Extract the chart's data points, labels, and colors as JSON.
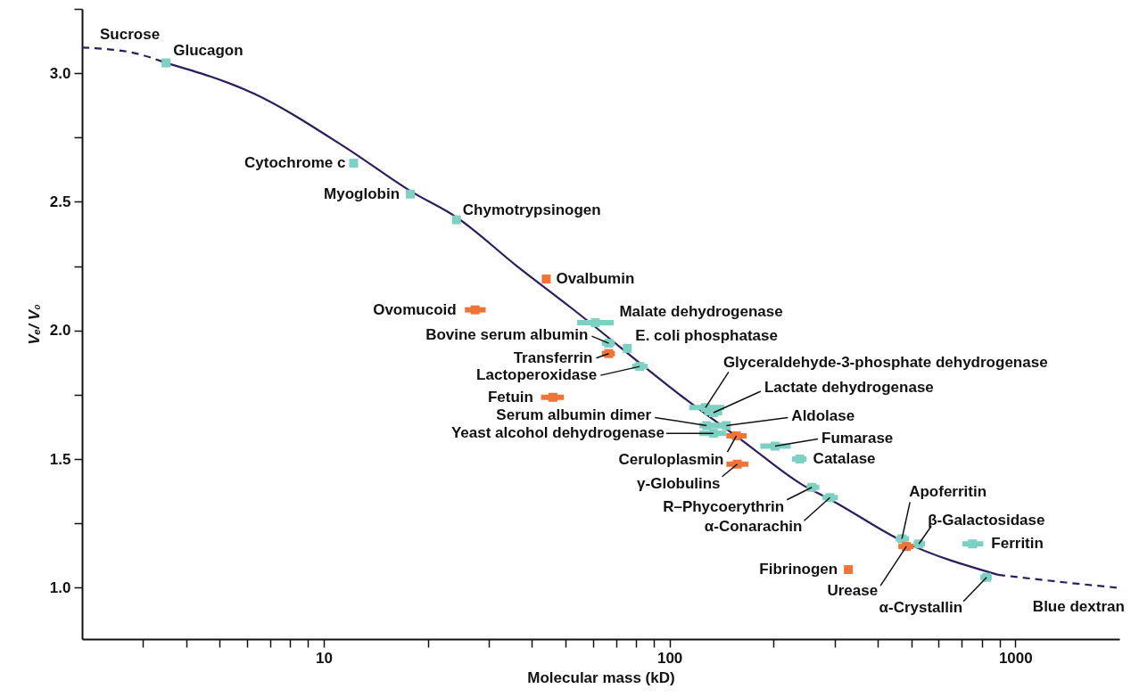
{
  "chart_data": {
    "type": "scatter",
    "xlabel": "Molecular mass (kD)",
    "ylabel": "Vₑ/ V₀",
    "log": "x",
    "marker": "square",
    "grid": false,
    "xlim": [
      2,
      2000
    ],
    "ylim": [
      0.8,
      3.25
    ],
    "xticks": [
      {
        "value": 3,
        "label": null
      },
      {
        "value": 4,
        "label": null
      },
      {
        "value": 5,
        "label": null
      },
      {
        "value": 6,
        "label": null
      },
      {
        "value": 7,
        "label": null
      },
      {
        "value": 8,
        "label": null
      },
      {
        "value": 9,
        "label": null
      },
      10,
      {
        "value": 20,
        "label": null
      },
      {
        "value": 30,
        "label": null
      },
      {
        "value": 40,
        "label": null
      },
      {
        "value": 50,
        "label": null
      },
      {
        "value": 60,
        "label": null
      },
      {
        "value": 70,
        "label": null
      },
      {
        "value": 80,
        "label": null
      },
      {
        "value": 90,
        "label": null
      },
      100,
      {
        "value": 200,
        "label": null
      },
      {
        "value": 300,
        "label": null
      },
      {
        "value": 400,
        "label": null
      },
      {
        "value": 500,
        "label": null
      },
      {
        "value": 600,
        "label": null
      },
      {
        "value": 700,
        "label": null
      },
      {
        "value": 800,
        "label": null
      },
      {
        "value": 900,
        "label": null
      },
      1000
    ],
    "yticks": [
      {
        "value": 1,
        "label": "1.0"
      },
      {
        "value": 1.25,
        "label": null
      },
      1.5,
      {
        "value": 1.75,
        "label": null
      },
      {
        "value": 2,
        "label": "2.0"
      },
      {
        "value": 2.25,
        "label": null
      },
      2.5,
      {
        "value": 2.75,
        "label": null
      },
      {
        "value": 3,
        "label": "3.0"
      },
      {
        "value": 3.25,
        "label": null
      }
    ],
    "series": [
      {
        "type": "line",
        "marker": "none",
        "color": "#2e1d5c",
        "line_style": "dashed",
        "x": [
          2,
          2.8,
          3.5
        ],
        "values": [
          3.1,
          3.08,
          3.04
        ]
      },
      {
        "type": "line",
        "marker": "none",
        "color": "#2e1d5c",
        "line_style": "solid",
        "x": [
          3.5,
          6.3,
          11.6,
          17.9,
          24.2,
          36.2,
          51.7,
          112,
          163,
          242,
          294,
          473,
          891
        ],
        "values": [
          3.04,
          2.92,
          2.71,
          2.54,
          2.44,
          2.25,
          2.09,
          1.73,
          1.57,
          1.4,
          1.34,
          1.18,
          1.05
        ]
      },
      {
        "type": "line",
        "marker": "none",
        "color": "#2e1d5c",
        "line_style": "dashed",
        "x": [
          891,
          1400,
          1963
        ],
        "values": [
          1.05,
          1.02,
          1.0
        ]
      },
      {
        "x": [
          3.5,
          12.2,
          17.8,
          24.2,
          44,
          27.4,
          61,
          66.7,
          75.5,
          66.7,
          82,
          46,
          127,
          134,
          128,
          146,
          134,
          156,
          157,
          202,
          238,
          258,
          291,
          470,
          484,
          526,
          752,
          329,
          826
        ],
        "values": [
          3.04,
          2.65,
          2.53,
          2.43,
          2.2,
          2.08,
          2.03,
          1.95,
          1.93,
          1.91,
          1.86,
          1.74,
          1.7,
          1.68,
          1.63,
          1.63,
          1.6,
          1.59,
          1.48,
          1.55,
          1.5,
          1.39,
          1.35,
          1.19,
          1.16,
          1.17,
          1.17,
          1.07,
          1.04
        ],
        "colors": [
          "#7dd0c2",
          "#7dd0c2",
          "#7dd0c2",
          "#7dd0c2",
          "#ef7439",
          "#ef7439",
          "#7dd0c2",
          "#7dd0c2",
          "#7dd0c2",
          "#ef7439",
          "#7dd0c2",
          "#ef7439",
          "#7dd0c2",
          "#7dd0c2",
          "#7dd0c2",
          "#7dd0c2",
          "#7dd0c2",
          "#ef7439",
          "#ef7439",
          "#7dd0c2",
          "#7dd0c2",
          "#7dd0c2",
          "#7dd0c2",
          "#7dd0c2",
          "#ef7439",
          "#7dd0c2",
          "#7dd0c2",
          "#ef7439",
          "#7dd0c2"
        ],
        "xerrors": [
          null,
          null,
          null,
          null,
          null,
          [
            25.6,
            29.4
          ],
          [
            54,
            69
          ],
          [
            63.7,
            69.5
          ],
          null,
          [
            63.7,
            69.5
          ],
          [
            78,
            86.5
          ],
          [
            42.5,
            49.5
          ],
          [
            114,
            144
          ],
          [
            126,
            142
          ],
          [
            122,
            149
          ],
          [
            130,
            148
          ],
          [
            122,
            146
          ],
          [
            146,
            167
          ],
          [
            146,
            169
          ],
          [
            183,
            224
          ],
          [
            226,
            249
          ],
          [
            249,
            271
          ],
          [
            277,
            307
          ],
          [
            451,
            493
          ],
          [
            459,
            508
          ],
          [
            508,
            548
          ],
          [
            703,
            808
          ],
          null,
          [
            792,
            855
          ]
        ]
      }
    ],
    "annotations": [
      {
        "text": "Sucrose",
        "x": 2,
        "y": 3.1
      },
      {
        "text": "Glucagon",
        "x": 3.5,
        "y": 3.04
      },
      {
        "text": "Cytochrome c",
        "x": 12.2,
        "y": 2.65
      },
      {
        "text": "Myoglobin",
        "x": 17.8,
        "y": 2.53
      },
      {
        "text": "Chymotrypsinogen",
        "x": 24.2,
        "y": 2.43
      },
      {
        "text": "Ovalbumin",
        "x": 44,
        "y": 2.2
      },
      {
        "text": "Ovomucoid",
        "x": 27.4,
        "y": 2.08
      },
      {
        "text": "Malate dehydrogenase",
        "x": 61,
        "y": 2.03
      },
      {
        "text": "Bovine serum albumin",
        "x": 66.7,
        "y": 1.95
      },
      {
        "text": "E. coli phosphatase",
        "x": 75.5,
        "y": 1.93
      },
      {
        "text": "Transferrin",
        "x": 66.7,
        "y": 1.91
      },
      {
        "text": "Lactoperoxidase",
        "x": 82,
        "y": 1.86
      },
      {
        "text": "Fetuin",
        "x": 46,
        "y": 1.74
      },
      {
        "text": "Glyceraldehyde-3-phosphate dehydrogenase",
        "x": 127,
        "y": 1.7
      },
      {
        "text": "Lactate dehydrogenase",
        "x": 134,
        "y": 1.68
      },
      {
        "text": "Serum albumin dimer",
        "x": 128,
        "y": 1.63
      },
      {
        "text": "Aldolase",
        "x": 146,
        "y": 1.63
      },
      {
        "text": "Yeast alcohol dehydrogenase",
        "x": 134,
        "y": 1.6
      },
      {
        "text": "Ceruloplasmin",
        "x": 156,
        "y": 1.59
      },
      {
        "text": "γ-Globulins",
        "x": 157,
        "y": 1.48
      },
      {
        "text": "Fumarase",
        "x": 202,
        "y": 1.55
      },
      {
        "text": "Catalase",
        "x": 238,
        "y": 1.5
      },
      {
        "text": "R–Phycoerythrin",
        "x": 258,
        "y": 1.39
      },
      {
        "text": "α-Conarachin",
        "x": 291,
        "y": 1.35
      },
      {
        "text": "Apoferritin",
        "x": 470,
        "y": 1.19
      },
      {
        "text": "Urease",
        "x": 484,
        "y": 1.16
      },
      {
        "text": "β-Galactosidase",
        "x": 526,
        "y": 1.17
      },
      {
        "text": "Ferritin",
        "x": 752,
        "y": 1.17
      },
      {
        "text": "Fibrinogen",
        "x": 329,
        "y": 1.07
      },
      {
        "text": "α-Crystallin",
        "x": 826,
        "y": 1.04
      },
      {
        "text": "Blue dextran",
        "x": 1963,
        "y": 1.0
      }
    ]
  }
}
